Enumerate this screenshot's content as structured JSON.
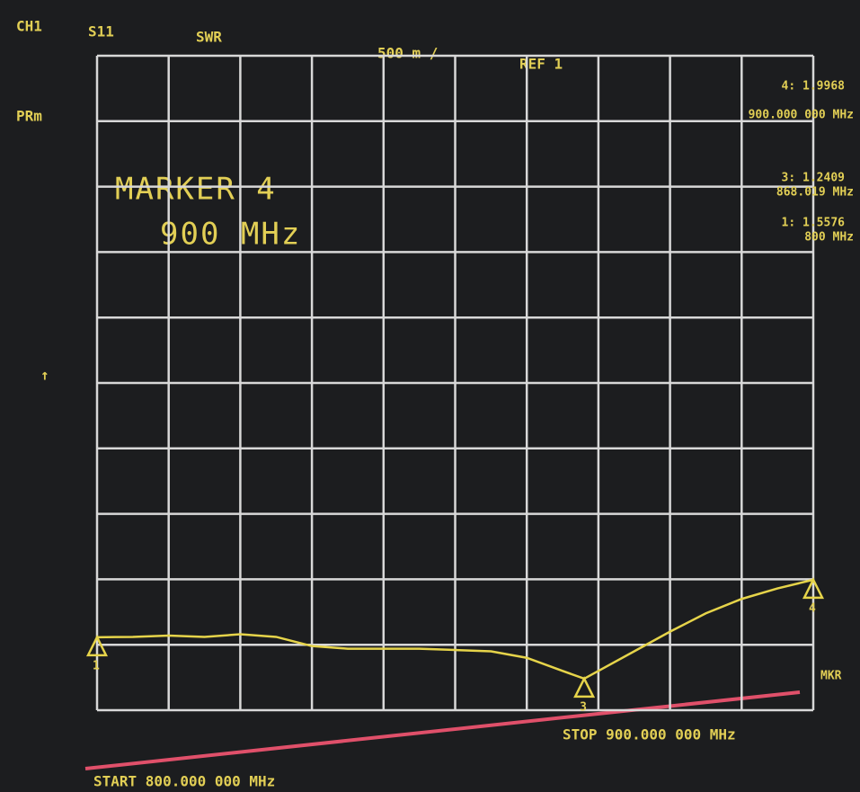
{
  "chart_data": {
    "type": "line",
    "channel": "CH1",
    "parameter": "S11",
    "format": "SWR",
    "scale": "500 m /",
    "reference": "REF 1",
    "side_label": "PRm",
    "annotation_title": "MARKER 4",
    "annotation_value": "900 MHz",
    "start_label": "START 800.000 000 MHz",
    "stop_label": "STOP 900.000 000 MHz",
    "side_label_2": "MKR",
    "xlim": [
      800,
      900
    ],
    "ylim": [
      1,
      6
    ],
    "xticks": [
      800,
      810,
      820,
      830,
      840,
      850,
      860,
      870,
      880,
      890,
      900
    ],
    "yticks": [
      1,
      1.5,
      2,
      2.5,
      3,
      3.5,
      4,
      4.5,
      5,
      5.5,
      6
    ],
    "grid": true,
    "series": [
      {
        "name": "S11",
        "color": "#e6d44a",
        "x": [
          800,
          805,
          810,
          815,
          820,
          825,
          830,
          835,
          840,
          845,
          850,
          855,
          860,
          865,
          868.019,
          870,
          875,
          880,
          885,
          890,
          895,
          900
        ],
        "values": [
          1.5576,
          1.56,
          1.57,
          1.56,
          1.58,
          1.56,
          1.49,
          1.47,
          1.47,
          1.47,
          1.46,
          1.45,
          1.4,
          1.3,
          1.2409,
          1.3,
          1.45,
          1.6,
          1.74,
          1.85,
          1.93,
          1.9968
        ]
      }
    ],
    "markers": [
      {
        "name": "1",
        "x": 800,
        "y": 1.5576,
        "readout": "1: 1.5576",
        "freq_label": "800 MHz"
      },
      {
        "name": "3",
        "x": 868.019,
        "y": 1.2409,
        "readout": "3: 1.2409",
        "freq_label": "868.019 MHz"
      },
      {
        "name": "4",
        "x": 900,
        "y": 1.9968,
        "readout": "4: 1.9968",
        "freq_label": "900.000 000 MHz"
      }
    ]
  }
}
